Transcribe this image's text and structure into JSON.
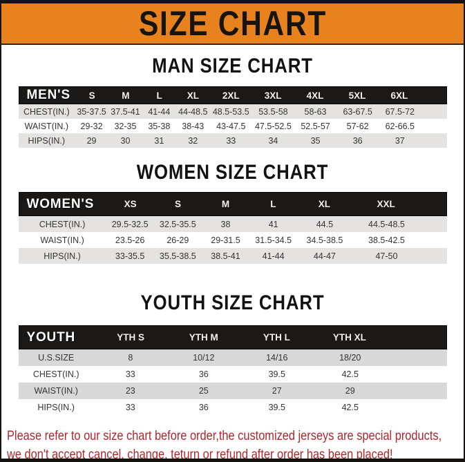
{
  "banner": {
    "title": "SIZE CHART"
  },
  "sections": {
    "men": {
      "title": "MAN SIZE CHART",
      "table": {
        "header": [
          "MEN'S",
          "S",
          "M",
          "L",
          "XL",
          "2XL",
          "3XL",
          "4XL",
          "5XL",
          "6XL"
        ],
        "rows": [
          [
            "CHEST(IN.)",
            "35-37.5",
            "37.5-41",
            "41-44",
            "44-48.5",
            "48.5-53.5",
            "53.5-58",
            "58-63",
            "63-67.5",
            "67.5-72"
          ],
          [
            "WAIST(IN.)",
            "29-32",
            "32-35",
            "35-38",
            "38-43",
            "43-47.5",
            "47.5-52.5",
            "52.5-57",
            "57-62",
            "62-66.5"
          ],
          [
            "HIPS(IN.)",
            "29",
            "30",
            "31",
            "32",
            "33",
            "34",
            "35",
            "36",
            "37"
          ]
        ]
      }
    },
    "women": {
      "title": "WOMEN SIZE CHART",
      "table": {
        "header": [
          "WOMEN'S",
          "XS",
          "S",
          "M",
          "L",
          "XL",
          "XXL"
        ],
        "rows": [
          [
            "CHEST(IN.)",
            "29.5-32.5",
            "32.5-35.5",
            "38",
            "41",
            "44.5",
            "44.5-48.5"
          ],
          [
            "WAIST(IN.)",
            "23.5-26",
            "26-29",
            "29-31.5",
            "31.5-34.5",
            "34.5-38.5",
            "38.5-42.5"
          ],
          [
            "HIPS(IN.)",
            "33-35.5",
            "35.5-38.5",
            "38.5-41",
            "41-44",
            "44-47",
            "47-50"
          ]
        ]
      }
    },
    "youth": {
      "title": "YOUTH SIZE CHART",
      "table": {
        "header": [
          "YOUTH",
          "YTH S",
          "YTH M",
          "YTH L",
          "YTH XL"
        ],
        "rows": [
          [
            "U.S.SIZE",
            "8",
            "10/12",
            "14/16",
            "18/20"
          ],
          [
            "CHEST(IN.)",
            "33",
            "36",
            "39.5",
            "42.5"
          ],
          [
            "WAIST(IN.)",
            "23",
            "25",
            "27",
            "29"
          ],
          [
            "HIPS(IN.)",
            "33",
            "36",
            "39.5",
            "42.5"
          ]
        ]
      }
    }
  },
  "footer": {
    "line1": "Please refer to our size chart before order,the customized jerseys are special products,",
    "line2": "we don't accept cancel, change, teturn or refund after order has been placed!"
  },
  "colors": {
    "accent_orange": "#E8821E",
    "frame_black": "#151413",
    "header_black": "#1B1917",
    "stripe_gray": "#E4E3E2",
    "youth_stripe_gray": "#D9D8D8",
    "warning_red": "#B3242C"
  }
}
